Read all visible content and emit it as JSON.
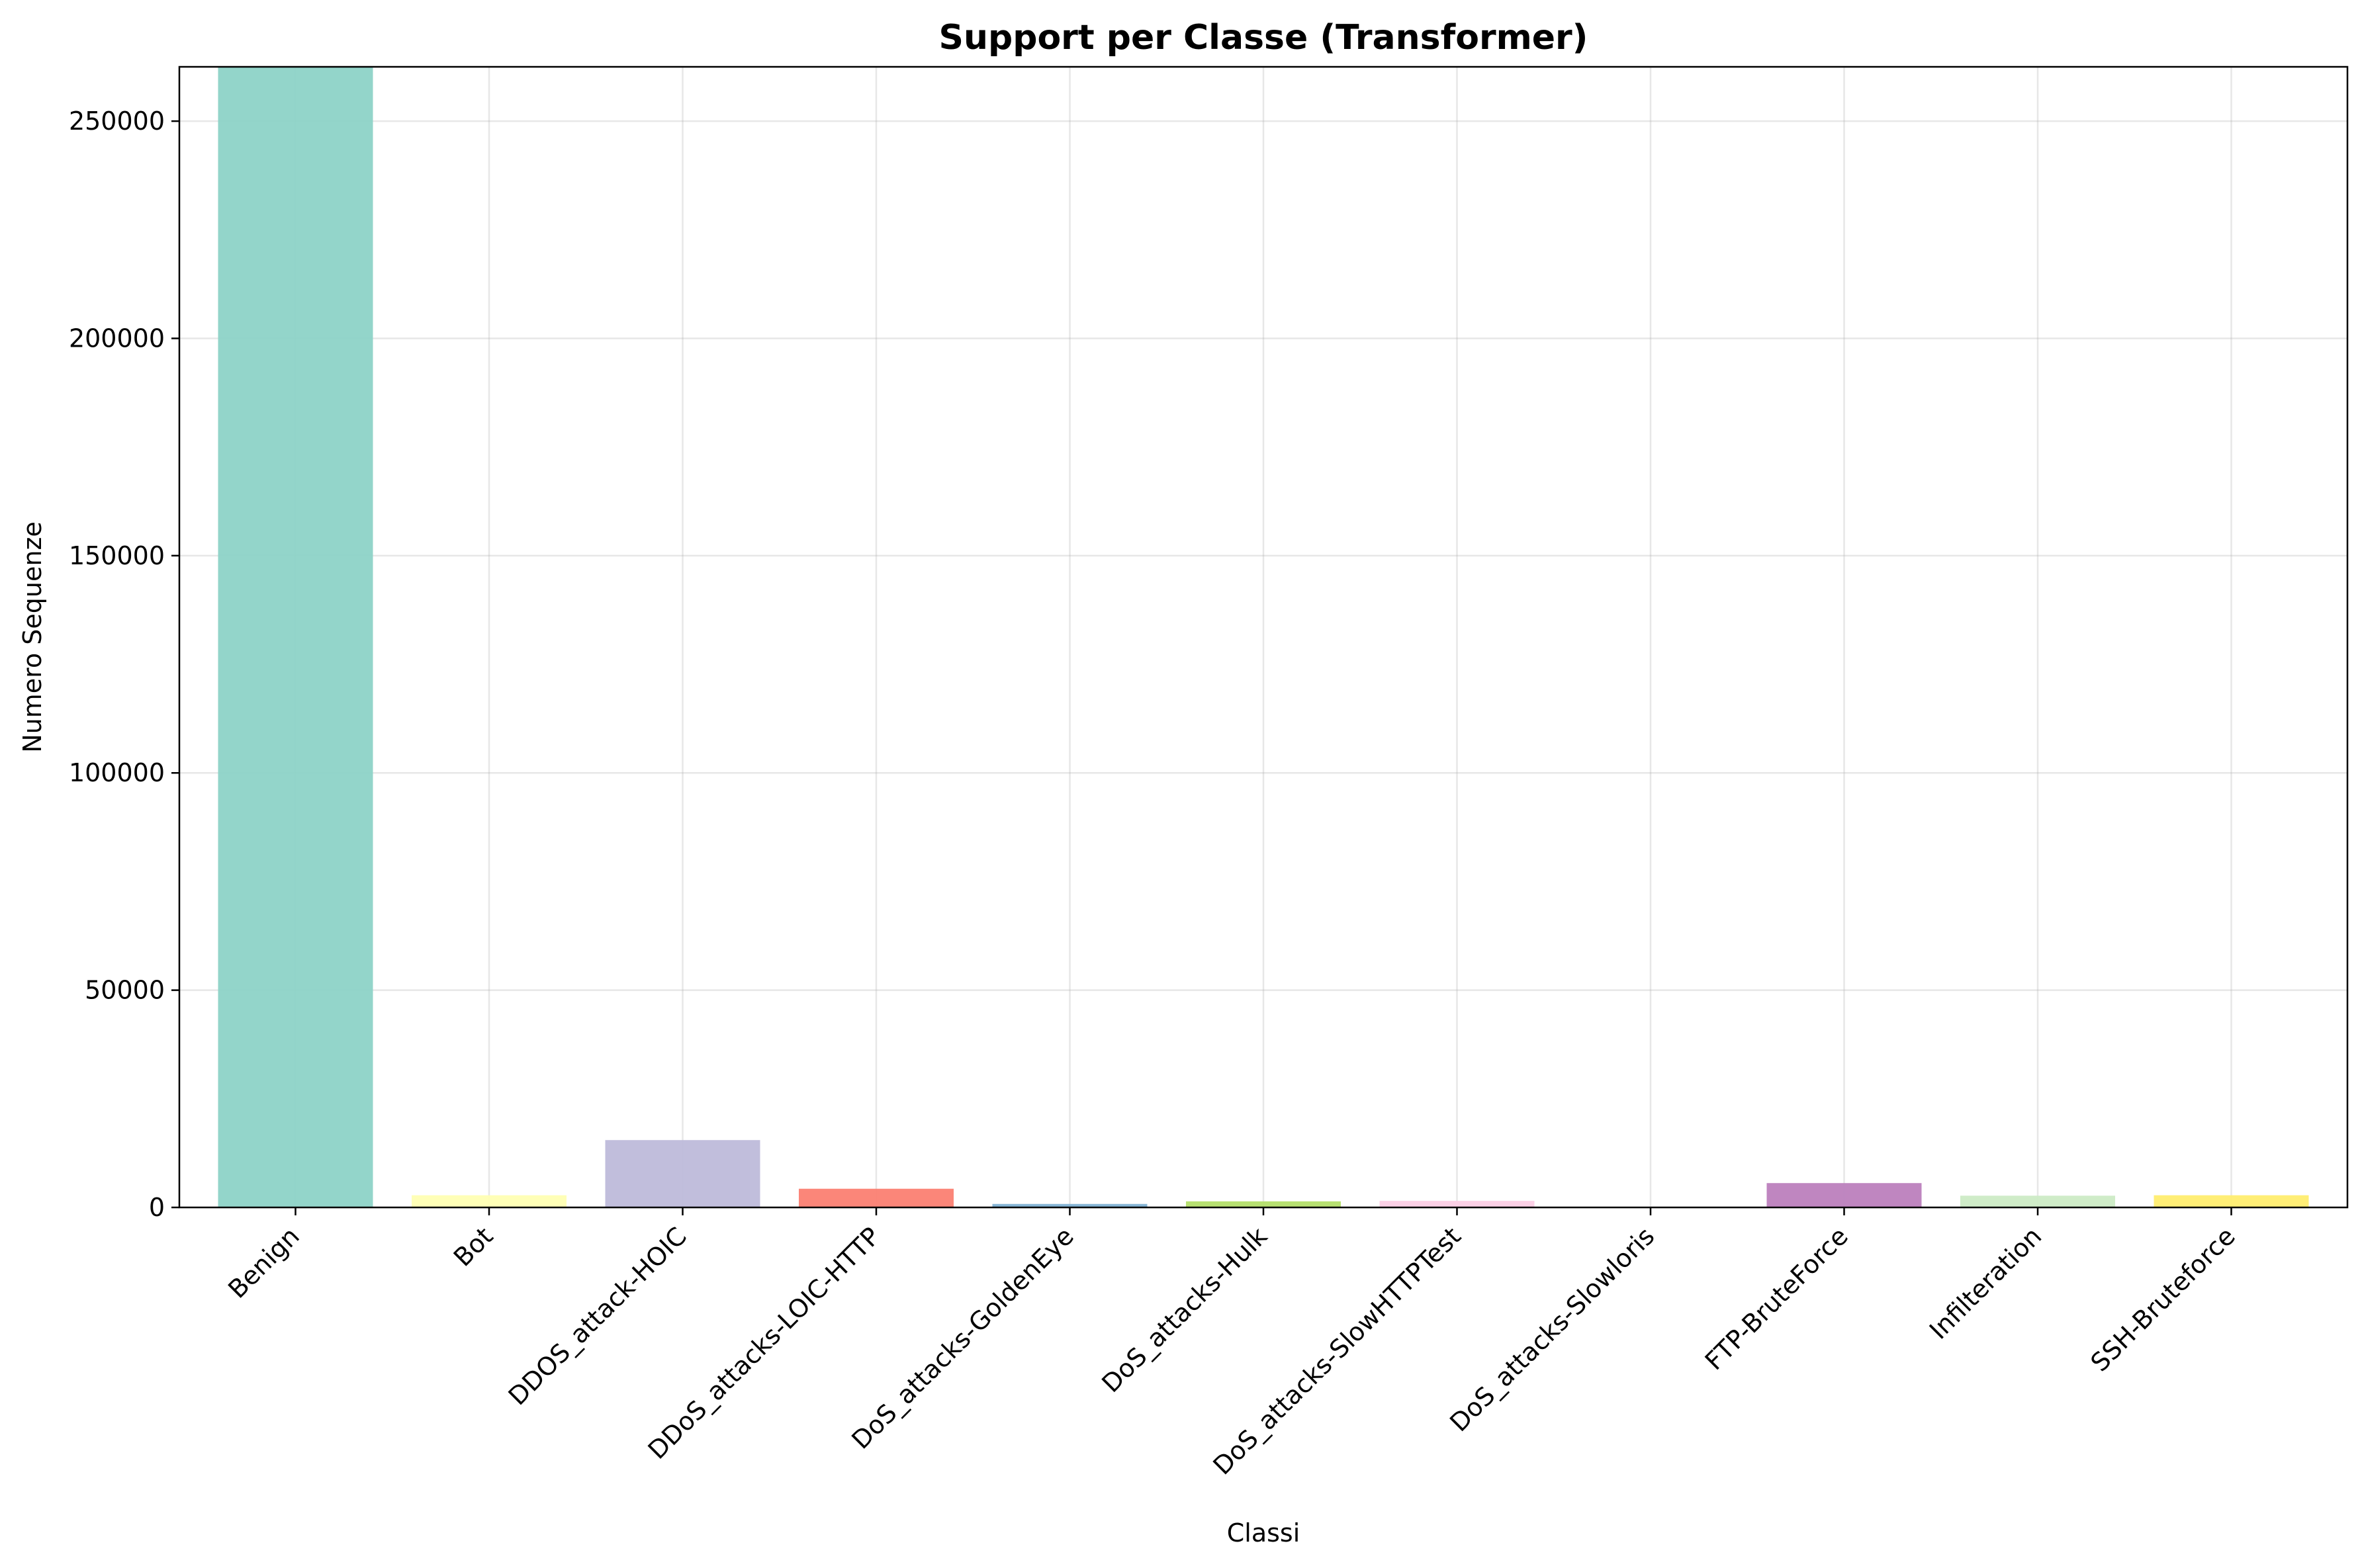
{
  "chart_data": {
    "type": "bar",
    "title": "Support per Classe (Transformer)",
    "xlabel": "Classi",
    "ylabel": "Numero Sequenze",
    "categories": [
      "Benign",
      "Bot",
      "DDOS_attack-HOIC",
      "DDoS_attacks-LOIC-HTTP",
      "DoS_attacks-GoldenEye",
      "DoS_attacks-Hulk",
      "DoS_attacks-SlowHTTPTest",
      "DoS_attacks-Slowloris",
      "FTP-BruteForce",
      "Infilteration",
      "SSH-Bruteforce"
    ],
    "values": [
      265000,
      2800,
      15500,
      4300,
      800,
      1400,
      1500,
      100,
      5600,
      2700,
      2800
    ],
    "colors": [
      "#8dd3c7",
      "#ffffb3",
      "#bebada",
      "#fb8072",
      "#80b1d3",
      "#b3de69",
      "#fccde5",
      "#d9d9d9",
      "#bc80bd",
      "#ccebc5",
      "#ffed6f"
    ],
    "bar_opacity": 0.95,
    "ylim": [
      0,
      262500
    ],
    "yticks": [
      0,
      50000,
      100000,
      150000,
      200000,
      250000
    ],
    "ytick_labels": [
      "0",
      "50000",
      "100000",
      "150000",
      "200000",
      "250000"
    ],
    "grid": true,
    "x_tick_rotation": 45
  }
}
